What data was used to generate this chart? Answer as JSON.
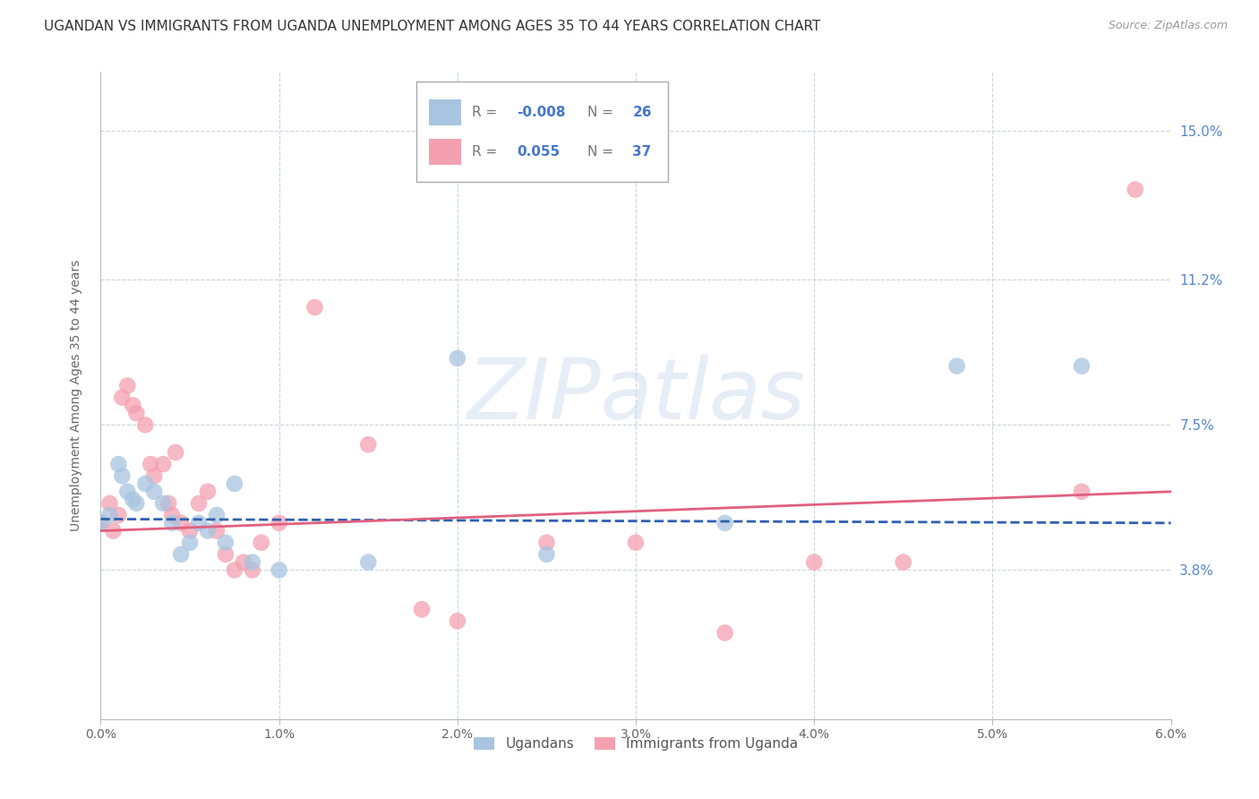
{
  "title": "UGANDAN VS IMMIGRANTS FROM UGANDA UNEMPLOYMENT AMONG AGES 35 TO 44 YEARS CORRELATION CHART",
  "source": "Source: ZipAtlas.com",
  "xlabel_ticks": [
    "0.0%",
    "1.0%",
    "2.0%",
    "3.0%",
    "4.0%",
    "5.0%",
    "6.0%"
  ],
  "xlabel_vals": [
    0.0,
    1.0,
    2.0,
    3.0,
    4.0,
    5.0,
    6.0
  ],
  "ylabel_ticks": [
    "3.8%",
    "7.5%",
    "11.2%",
    "15.0%"
  ],
  "ylabel_vals": [
    3.8,
    7.5,
    11.2,
    15.0
  ],
  "xlim": [
    0.0,
    6.0
  ],
  "ylim": [
    0.0,
    16.5
  ],
  "ylabel": "Unemployment Among Ages 35 to 44 years",
  "legend1_label": "Ugandans",
  "legend2_label": "Immigrants from Uganda",
  "blue_R": "-0.008",
  "blue_N": "26",
  "pink_R": "0.055",
  "pink_N": "37",
  "blue_color": "#a8c4e0",
  "pink_color": "#f4a0b0",
  "blue_line_color": "#3060b0",
  "pink_line_color": "#e06080",
  "watermark": "ZIPatlas",
  "blue_scatter_x": [
    0.0,
    0.05,
    0.1,
    0.12,
    0.15,
    0.18,
    0.2,
    0.25,
    0.3,
    0.35,
    0.4,
    0.45,
    0.5,
    0.55,
    0.6,
    0.65,
    0.7,
    0.75,
    0.85,
    1.0,
    1.5,
    2.0,
    2.5,
    3.5,
    4.8,
    5.5
  ],
  "blue_scatter_y": [
    5.0,
    5.2,
    6.5,
    6.2,
    5.8,
    5.6,
    5.5,
    6.0,
    5.8,
    5.5,
    5.0,
    4.2,
    4.5,
    5.0,
    4.8,
    5.2,
    4.5,
    6.0,
    4.0,
    3.8,
    4.0,
    9.2,
    4.2,
    5.0,
    9.0,
    9.0
  ],
  "pink_scatter_x": [
    0.0,
    0.05,
    0.07,
    0.1,
    0.12,
    0.15,
    0.18,
    0.2,
    0.25,
    0.28,
    0.3,
    0.35,
    0.38,
    0.4,
    0.42,
    0.45,
    0.5,
    0.55,
    0.6,
    0.65,
    0.7,
    0.75,
    0.8,
    0.85,
    0.9,
    1.0,
    1.2,
    1.5,
    1.8,
    2.0,
    2.5,
    3.0,
    3.5,
    4.0,
    4.5,
    5.5,
    5.8
  ],
  "pink_scatter_y": [
    5.0,
    5.5,
    4.8,
    5.2,
    8.2,
    8.5,
    8.0,
    7.8,
    7.5,
    6.5,
    6.2,
    6.5,
    5.5,
    5.2,
    6.8,
    5.0,
    4.8,
    5.5,
    5.8,
    4.8,
    4.2,
    3.8,
    4.0,
    3.8,
    4.5,
    5.0,
    10.5,
    7.0,
    2.8,
    2.5,
    4.5,
    4.5,
    2.2,
    4.0,
    4.0,
    5.8,
    13.5
  ],
  "blue_line_y_start": 5.1,
  "blue_line_y_end": 5.0,
  "pink_line_y_start": 4.8,
  "pink_line_y_end": 5.8,
  "grid_color": "#c8d4de",
  "background_color": "#ffffff",
  "title_fontsize": 11,
  "axis_label_fontsize": 10,
  "tick_fontsize": 10,
  "source_fontsize": 9
}
